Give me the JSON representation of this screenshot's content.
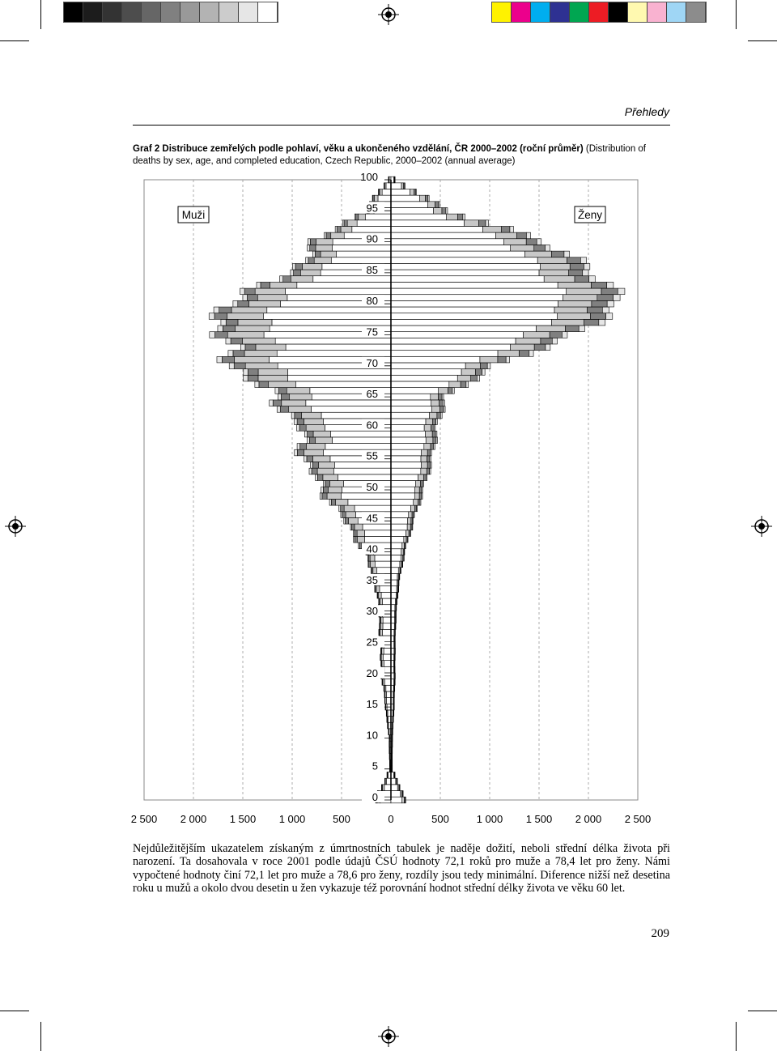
{
  "header": {
    "section": "Přehledy"
  },
  "caption": {
    "bold_part": "Graf 2 Distribuce zemřelých podle pohlaví, věku a ukončeného vzdělání, ČR 2000–2002 (roční průměr)",
    "normal_part": " (Distribution of deaths by sex, age, and completed education, Czech Republic, 2000–2002 (annual average)"
  },
  "print_marks": {
    "gray_swatches": [
      "#000000",
      "#1c1c1c",
      "#333333",
      "#4d4d4d",
      "#666666",
      "#808080",
      "#999999",
      "#b3b3b3",
      "#cccccc",
      "#e6e6e6",
      "#ffffff"
    ],
    "color_swatches": [
      "#fff200",
      "#ec008c",
      "#00aeef",
      "#2e3192",
      "#00a651",
      "#ed1c24",
      "#000000",
      "#fff9b0",
      "#f9b2d0",
      "#9fd6f5",
      "#8c8c8c"
    ]
  },
  "chart_data": {
    "type": "bar",
    "orientation": "horizontal-population-pyramid",
    "left_label": "Muži",
    "right_label": "Ženy",
    "x_ticks": [
      "2 500",
      "2 000",
      "1 500",
      "1 000",
      "500",
      "0",
      "500",
      "1 000",
      "1 500",
      "2 000",
      "2 500"
    ],
    "xlim": [
      -2500,
      2500
    ],
    "y_ticks": [
      "0",
      "5",
      "10",
      "15",
      "20",
      "25",
      "30",
      "35",
      "40",
      "45",
      "50",
      "55",
      "60",
      "65",
      "70",
      "75",
      "80",
      "85",
      "90",
      "95",
      "100"
    ],
    "ylim": [
      0,
      100
    ],
    "grid": "vertical dashed",
    "education_levels": [
      {
        "fill": "#ffffff"
      },
      {
        "fill": "#c8c8c8"
      },
      {
        "fill": "#808080"
      },
      {
        "fill": "#e6e6e6"
      }
    ],
    "ages": [
      0,
      5,
      10,
      15,
      20,
      25,
      30,
      35,
      40,
      45,
      50,
      55,
      60,
      65,
      70,
      75,
      80,
      85,
      90,
      95,
      100
    ],
    "men_total": [
      155,
      12,
      20,
      55,
      95,
      110,
      120,
      160,
      270,
      470,
      700,
      890,
      930,
      1200,
      1610,
      1740,
      1750,
      1000,
      780,
      270,
      25
    ],
    "women_total": [
      150,
      10,
      12,
      30,
      40,
      40,
      50,
      80,
      140,
      230,
      330,
      420,
      470,
      560,
      1060,
      1880,
      2370,
      2090,
      1580,
      590,
      40
    ],
    "men_shares": [
      0.7,
      0.2,
      0.07,
      0.03
    ],
    "women_shares": [
      0.75,
      0.15,
      0.07,
      0.03
    ]
  },
  "body_text": "Nejdůležitějším ukazatelem získaným z úmrtnostních tabulek je naděje dožití, neboli střední délka života při narození. Ta dosahovala v roce 2001 podle údajů ČSÚ hodnoty 72,1 roků pro muže a 78,4 let pro ženy. Námi vypočtené hodnoty činí 72,1 let pro muže a 78,6 pro ženy, rozdíly jsou tedy minimální. Diference nižší než desetina roku u mužů a okolo dvou desetin u žen vykazuje též porovnání hodnot střední délky života ve věku 60 let.",
  "page_number": "209"
}
